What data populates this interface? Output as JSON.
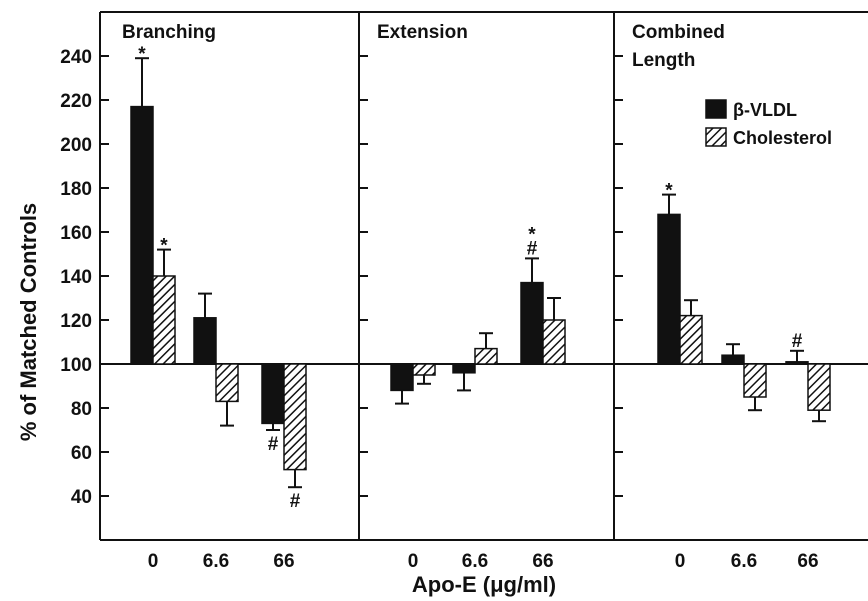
{
  "chart_data": {
    "type": "bar",
    "ylabel": "% of Matched Controls",
    "xlabel": "Apo-E (μg/ml)",
    "ylim": [
      20,
      260
    ],
    "yticks": [
      40,
      60,
      80,
      100,
      120,
      140,
      160,
      180,
      200,
      220,
      240
    ],
    "baseline": 100,
    "categories": [
      "0",
      "6.6",
      "66"
    ],
    "legend": {
      "placement": "top-right",
      "entries": [
        {
          "label": "β-VLDL",
          "fill": "solid"
        },
        {
          "label": "Cholesterol",
          "fill": "hatched"
        }
      ]
    },
    "panels": [
      {
        "title_lines": [
          "Branching"
        ],
        "series": [
          {
            "name": "β-VLDL",
            "values": [
              217,
              121,
              73
            ],
            "errors": [
              22,
              11,
              3
            ],
            "annotations": [
              "*",
              "",
              "#"
            ]
          },
          {
            "name": "Cholesterol",
            "values": [
              140,
              83,
              52
            ],
            "errors": [
              12,
              11,
              8
            ],
            "annotations": [
              "*",
              "",
              "#"
            ]
          }
        ]
      },
      {
        "title_lines": [
          "Extension"
        ],
        "series": [
          {
            "name": "β-VLDL",
            "values": [
              88,
              96,
              137
            ],
            "errors": [
              6,
              8,
              11
            ],
            "annotations": [
              "",
              "",
              "*#"
            ]
          },
          {
            "name": "Cholesterol",
            "values": [
              95,
              107,
              120
            ],
            "errors": [
              4,
              7,
              10
            ],
            "annotations": [
              "",
              "",
              ""
            ]
          }
        ]
      },
      {
        "title_lines": [
          "Combined",
          "Length"
        ],
        "series": [
          {
            "name": "β-VLDL",
            "values": [
              168,
              104,
              101
            ],
            "errors": [
              9,
              5,
              5
            ],
            "annotations": [
              "*",
              "",
              "#"
            ]
          },
          {
            "name": "Cholesterol",
            "values": [
              122,
              85,
              79
            ],
            "errors": [
              7,
              6,
              5
            ],
            "annotations": [
              "",
              "",
              ""
            ]
          }
        ]
      }
    ]
  },
  "colors": {
    "ink": "#111111",
    "background": "#ffffff"
  }
}
